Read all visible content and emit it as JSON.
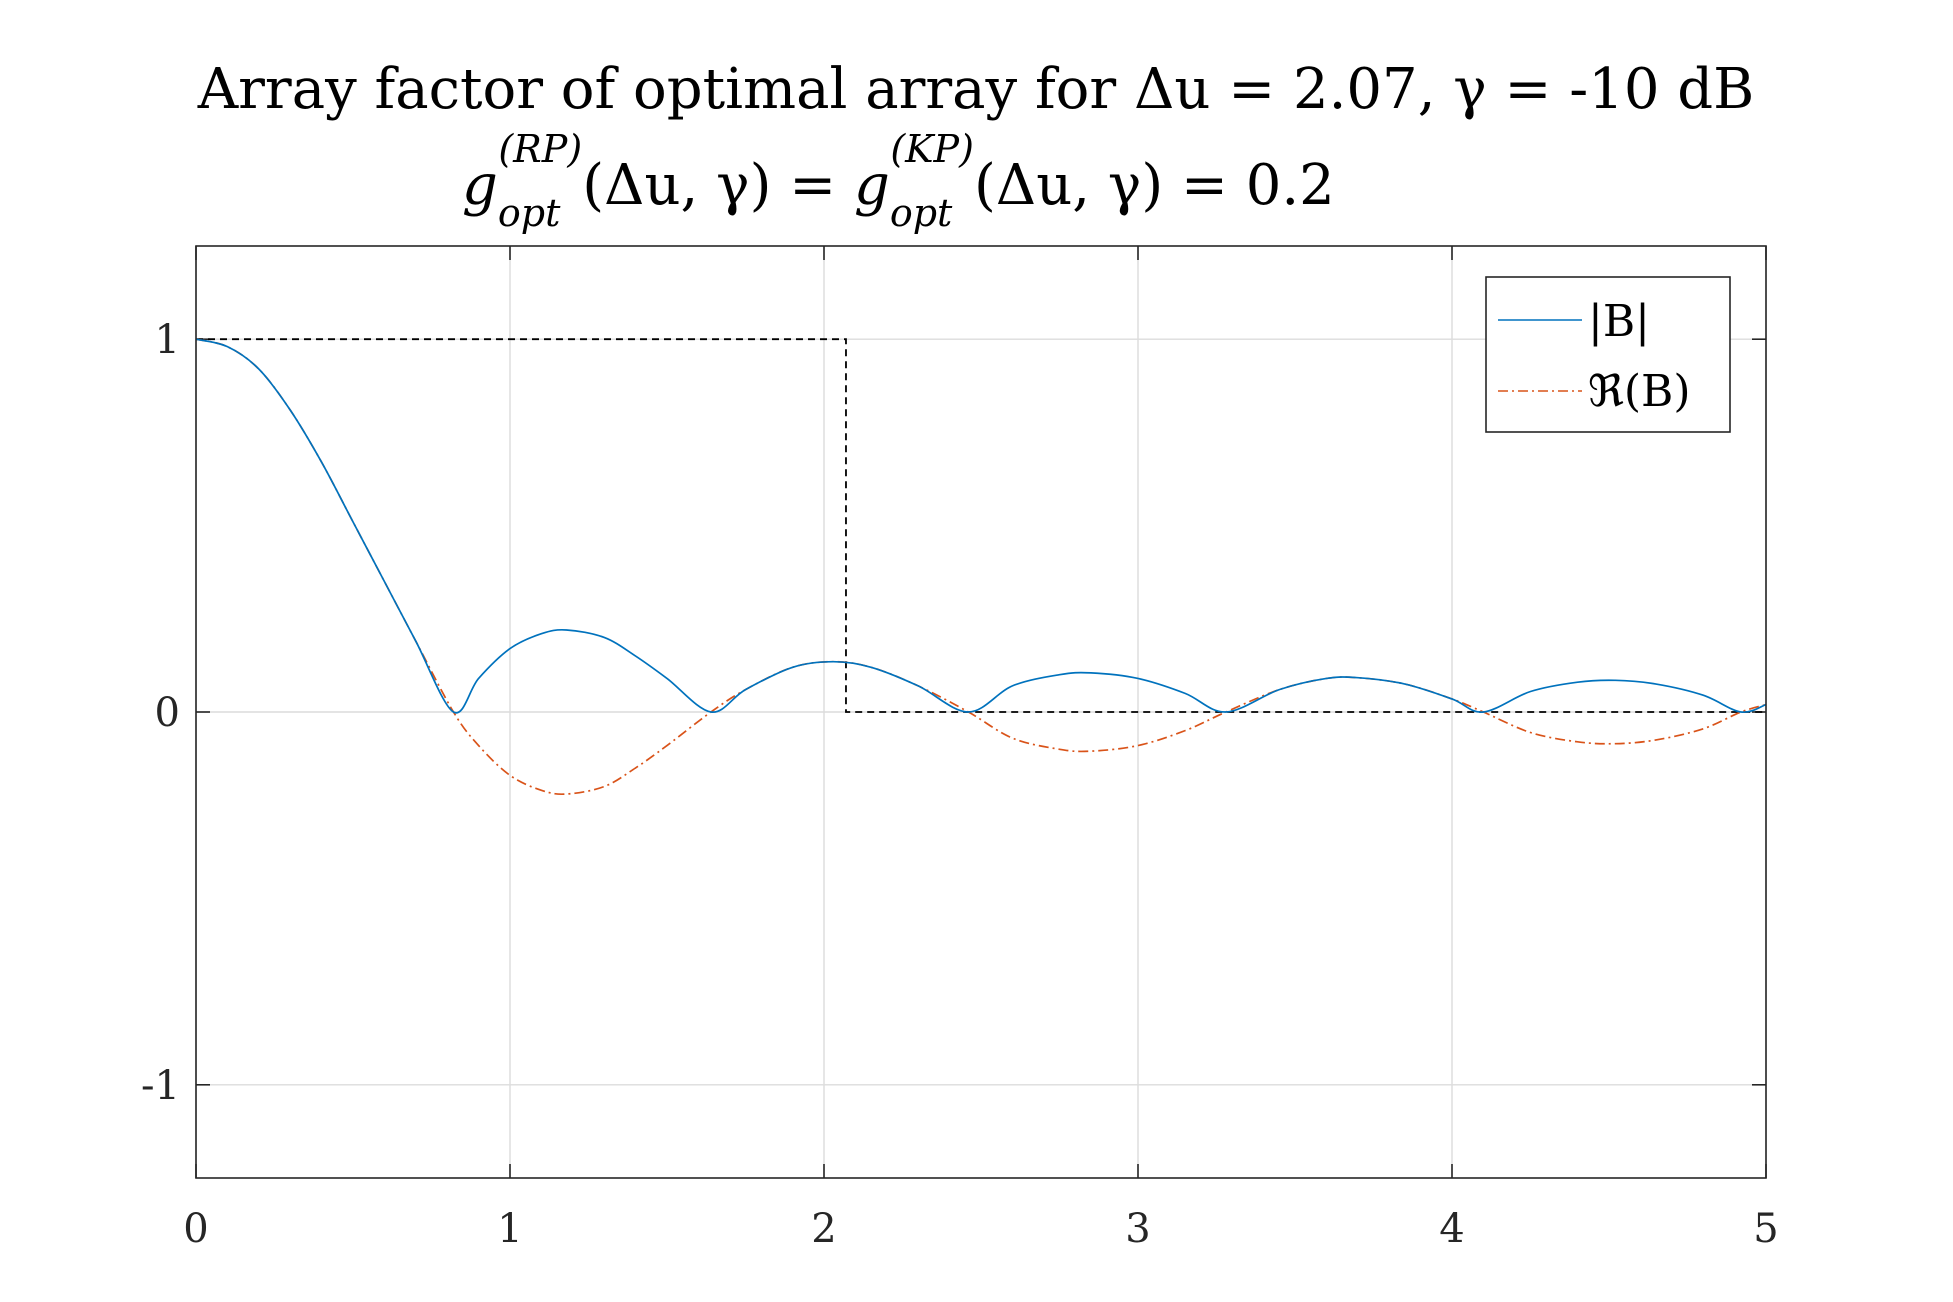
{
  "chart_data": {
    "type": "line",
    "title_line1": "Array factor of optimal array for Δu = 2.07, γ = -10 dB",
    "title_line2": {
      "g": "g",
      "sub1": "opt",
      "sup1": "(RP)",
      "args1": "(Δu, γ) = ",
      "sub2": "opt",
      "sup2": "(KP)",
      "args2": "(Δu, γ) = 0.2"
    },
    "xlabel": "",
    "ylabel": "",
    "xlim": [
      0,
      5
    ],
    "ylim": [
      -1.25,
      1.25
    ],
    "xticks": [
      0,
      1,
      2,
      3,
      4,
      5
    ],
    "xtick_labels": [
      "0",
      "1",
      "2",
      "3",
      "4",
      "5"
    ],
    "yticks": [
      -1,
      0,
      1
    ],
    "ytick_labels": [
      "-1",
      "0",
      "1"
    ],
    "grid": true,
    "legend_position": "top-right",
    "series": [
      {
        "name": "|B|",
        "color": "#0072BD",
        "style": "solid",
        "x": [
          0,
          0.1,
          0.2,
          0.3,
          0.4,
          0.5,
          0.6,
          0.7,
          0.82,
          0.9,
          1.0,
          1.1,
          1.18,
          1.3,
          1.4,
          1.5,
          1.64,
          1.75,
          1.9,
          2.03,
          2.15,
          2.3,
          2.46,
          2.6,
          2.75,
          2.85,
          3.0,
          3.15,
          3.28,
          3.45,
          3.6,
          3.7,
          3.85,
          4.0,
          4.1,
          4.25,
          4.4,
          4.52,
          4.65,
          4.8,
          4.92,
          5.0
        ],
        "y": [
          1.0,
          0.98,
          0.92,
          0.81,
          0.67,
          0.51,
          0.35,
          0.19,
          0.0,
          0.09,
          0.17,
          0.21,
          0.22,
          0.2,
          0.15,
          0.09,
          0.0,
          0.06,
          0.12,
          0.135,
          0.12,
          0.07,
          0.0,
          0.07,
          0.1,
          0.105,
          0.09,
          0.05,
          0.0,
          0.06,
          0.09,
          0.092,
          0.075,
          0.035,
          0.0,
          0.055,
          0.08,
          0.085,
          0.075,
          0.045,
          0.0,
          0.02
        ]
      },
      {
        "name": "ℜ(B)",
        "color": "#D95319",
        "style": "dash-dot",
        "x": [
          0,
          0.1,
          0.2,
          0.3,
          0.4,
          0.5,
          0.6,
          0.7,
          0.82,
          0.9,
          1.0,
          1.1,
          1.18,
          1.3,
          1.4,
          1.5,
          1.64,
          1.75,
          1.9,
          2.03,
          2.15,
          2.3,
          2.46,
          2.6,
          2.75,
          2.85,
          3.0,
          3.15,
          3.28,
          3.45,
          3.6,
          3.7,
          3.85,
          4.0,
          4.1,
          4.25,
          4.4,
          4.52,
          4.65,
          4.8,
          4.92,
          5.0
        ],
        "y": [
          1.0,
          0.98,
          0.92,
          0.81,
          0.67,
          0.51,
          0.35,
          0.19,
          0.0,
          -0.09,
          -0.17,
          -0.21,
          -0.22,
          -0.2,
          -0.15,
          -0.09,
          0.0,
          0.06,
          0.12,
          0.135,
          0.12,
          0.07,
          0.0,
          -0.07,
          -0.1,
          -0.105,
          -0.09,
          -0.05,
          0.0,
          0.06,
          0.09,
          0.092,
          0.075,
          0.035,
          0.0,
          -0.055,
          -0.08,
          -0.085,
          -0.075,
          -0.045,
          0.0,
          0.02
        ]
      },
      {
        "color": "#000000",
        "style": "dashed",
        "x": [
          0,
          2.07,
          2.07,
          5
        ],
        "y": [
          1,
          1,
          0,
          0
        ]
      }
    ]
  }
}
